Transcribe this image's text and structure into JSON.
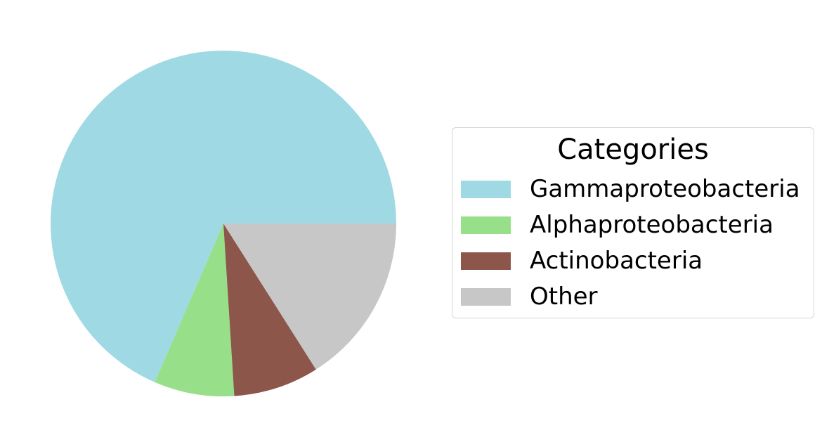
{
  "chart_data": {
    "type": "pie",
    "legend": {
      "title": "Categories",
      "placement": "right"
    },
    "slices": [
      {
        "label": "Gammaproteobacteria",
        "value": 68.5,
        "color": "#9fd9e4"
      },
      {
        "label": "Alphaproteobacteria",
        "value": 7.5,
        "color": "#98df8a"
      },
      {
        "label": "Actinobacteria",
        "value": 8.0,
        "color": "#8c564b"
      },
      {
        "label": "Other",
        "value": 16.0,
        "color": "#c7c7c7"
      }
    ],
    "start_angle_deg": 0,
    "direction": "counterclockwise"
  }
}
